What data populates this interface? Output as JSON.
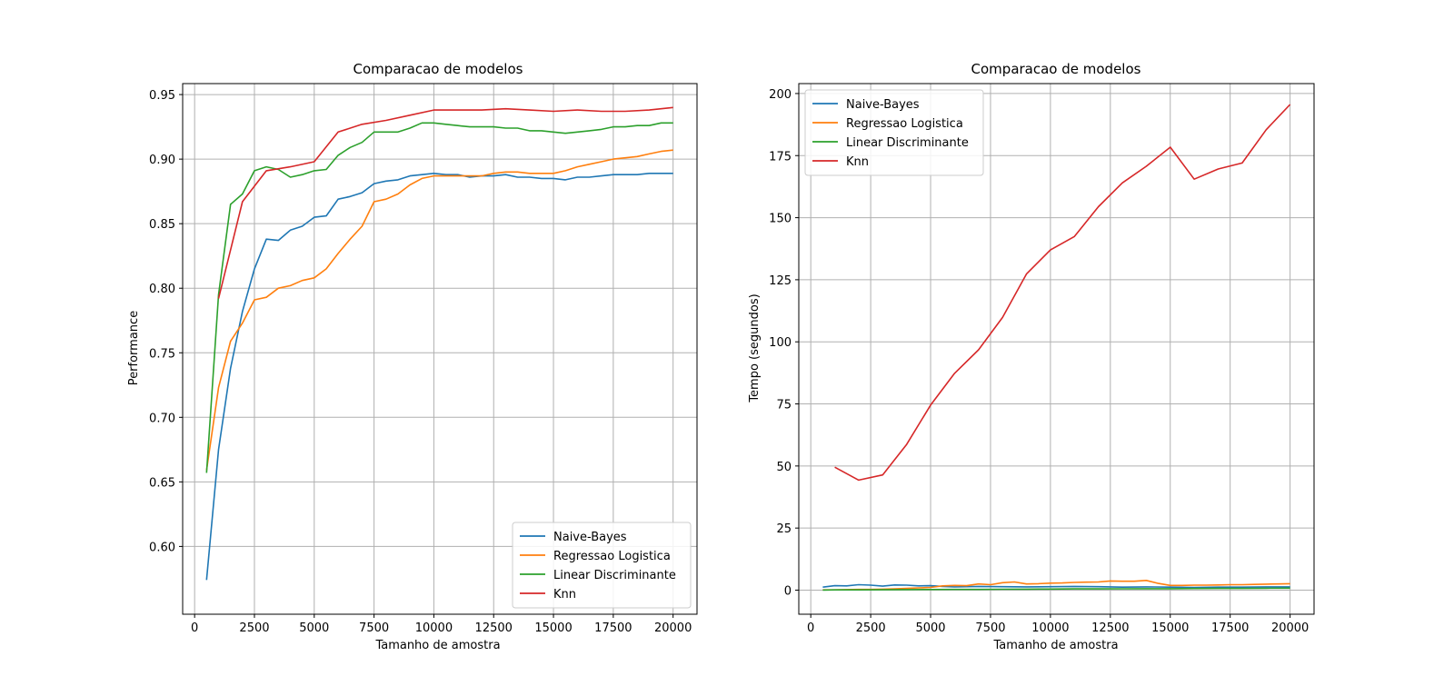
{
  "colors": {
    "naive_bayes": "#1f77b4",
    "regressao": "#ff7f0e",
    "linear": "#2ca02c",
    "knn": "#d62728",
    "grid": "#b0b0b0",
    "legend_border": "#cccccc"
  },
  "chart_data": [
    {
      "type": "line",
      "title": "Comparacao de modelos",
      "xlabel": "Tamanho de amostra",
      "ylabel": "Performance",
      "xlim": [
        -500,
        21000
      ],
      "ylim": [
        0.5475,
        0.9585
      ],
      "xticks": [
        0,
        2500,
        5000,
        7500,
        10000,
        12500,
        15000,
        17500,
        20000
      ],
      "xtick_labels": [
        "0",
        "2500",
        "5000",
        "7500",
        "10000",
        "12500",
        "15000",
        "17500",
        "20000"
      ],
      "yticks": [
        0.6,
        0.65,
        0.7,
        0.75,
        0.8,
        0.85,
        0.9,
        0.95
      ],
      "ytick_labels": [
        "0.60",
        "0.65",
        "0.70",
        "0.75",
        "0.80",
        "0.85",
        "0.90",
        "0.95"
      ],
      "grid": true,
      "legend_position": "lower-right",
      "series": [
        {
          "name": "Naive-Bayes",
          "color_key": "naive_bayes",
          "x": [
            500,
            1000,
            1500,
            2000,
            2500,
            3000,
            3500,
            4000,
            4500,
            5000,
            5500,
            6000,
            6500,
            7000,
            7500,
            8000,
            8500,
            9000,
            9500,
            10000,
            10500,
            11000,
            11500,
            12000,
            12500,
            13000,
            13500,
            14000,
            14500,
            15000,
            15500,
            16000,
            16500,
            17000,
            17500,
            18000,
            18500,
            19000,
            19500,
            20000
          ],
          "y": [
            0.574,
            0.675,
            0.738,
            0.782,
            0.815,
            0.838,
            0.837,
            0.845,
            0.848,
            0.855,
            0.856,
            0.869,
            0.871,
            0.874,
            0.881,
            0.883,
            0.884,
            0.887,
            0.888,
            0.889,
            0.888,
            0.888,
            0.886,
            0.887,
            0.887,
            0.888,
            0.886,
            0.886,
            0.885,
            0.885,
            0.884,
            0.886,
            0.886,
            0.887,
            0.888,
            0.888,
            0.888,
            0.889,
            0.889,
            0.889
          ]
        },
        {
          "name": "Regressao Logistica",
          "color_key": "regressao",
          "x": [
            500,
            1000,
            1500,
            2000,
            2500,
            3000,
            3500,
            4000,
            4500,
            5000,
            5500,
            6000,
            6500,
            7000,
            7500,
            8000,
            8500,
            9000,
            9500,
            10000,
            10500,
            11000,
            11500,
            12000,
            12500,
            13000,
            13500,
            14000,
            14500,
            15000,
            15500,
            16000,
            16500,
            17000,
            17500,
            18000,
            18500,
            19000,
            19500,
            20000
          ],
          "y": [
            0.659,
            0.723,
            0.759,
            0.773,
            0.791,
            0.793,
            0.8,
            0.802,
            0.806,
            0.808,
            0.815,
            0.827,
            0.838,
            0.848,
            0.867,
            0.869,
            0.873,
            0.88,
            0.885,
            0.887,
            0.887,
            0.887,
            0.887,
            0.887,
            0.889,
            0.89,
            0.89,
            0.889,
            0.889,
            0.889,
            0.891,
            0.894,
            0.896,
            0.898,
            0.9,
            0.901,
            0.902,
            0.904,
            0.906,
            0.907
          ]
        },
        {
          "name": "Linear Discriminante",
          "color_key": "linear",
          "x": [
            500,
            1000,
            1500,
            2000,
            2500,
            3000,
            3500,
            4000,
            4500,
            5000,
            5500,
            6000,
            6500,
            7000,
            7500,
            8000,
            8500,
            9000,
            9500,
            10000,
            10500,
            11000,
            11500,
            12000,
            12500,
            13000,
            13500,
            14000,
            14500,
            15000,
            15500,
            16000,
            16500,
            17000,
            17500,
            18000,
            18500,
            19000,
            19500,
            20000
          ],
          "y": [
            0.657,
            0.795,
            0.865,
            0.873,
            0.891,
            0.894,
            0.892,
            0.886,
            0.888,
            0.891,
            0.892,
            0.903,
            0.909,
            0.913,
            0.921,
            0.921,
            0.921,
            0.924,
            0.928,
            0.928,
            0.927,
            0.926,
            0.925,
            0.925,
            0.925,
            0.924,
            0.924,
            0.922,
            0.922,
            0.921,
            0.92,
            0.921,
            0.922,
            0.923,
            0.925,
            0.925,
            0.926,
            0.926,
            0.928,
            0.928
          ]
        },
        {
          "name": "Knn",
          "color_key": "knn",
          "x": [
            1000,
            2000,
            3000,
            4000,
            5000,
            6000,
            7000,
            8000,
            9000,
            10000,
            11000,
            12000,
            13000,
            14000,
            15000,
            16000,
            17000,
            18000,
            19000,
            20000
          ],
          "y": [
            0.792,
            0.867,
            0.891,
            0.894,
            0.898,
            0.921,
            0.927,
            0.93,
            0.934,
            0.938,
            0.938,
            0.938,
            0.939,
            0.938,
            0.937,
            0.938,
            0.937,
            0.937,
            0.938,
            0.94
          ]
        }
      ]
    },
    {
      "type": "line",
      "title": "Comparacao de modelos",
      "xlabel": "Tamanho de amostra",
      "ylabel": "Tempo (segundos)",
      "xlim": [
        -500,
        21000
      ],
      "ylim": [
        -9.7,
        204.0
      ],
      "xticks": [
        0,
        2500,
        5000,
        7500,
        10000,
        12500,
        15000,
        17500,
        20000
      ],
      "xtick_labels": [
        "0",
        "2500",
        "5000",
        "7500",
        "10000",
        "12500",
        "15000",
        "17500",
        "20000"
      ],
      "yticks": [
        0,
        25,
        50,
        75,
        100,
        125,
        150,
        175,
        200
      ],
      "ytick_labels": [
        "0",
        "25",
        "50",
        "75",
        "100",
        "125",
        "150",
        "175",
        "200"
      ],
      "grid": true,
      "legend_position": "upper-left",
      "series": [
        {
          "name": "Naive-Bayes",
          "color_key": "naive_bayes",
          "x": [
            500,
            1000,
            1500,
            2000,
            2500,
            3000,
            3500,
            4000,
            4500,
            5000,
            5500,
            6000,
            7000,
            8000,
            9000,
            10000,
            11000,
            12000,
            13000,
            14000,
            15000,
            16000,
            17000,
            18000,
            19000,
            20000
          ],
          "y": [
            1.2,
            1.8,
            1.7,
            2.2,
            2.0,
            1.6,
            2.1,
            2.0,
            1.7,
            1.8,
            1.5,
            1.3,
            1.5,
            1.4,
            1.3,
            1.4,
            1.5,
            1.4,
            1.2,
            1.3,
            1.2,
            1.1,
            1.2,
            1.2,
            1.3,
            1.3
          ]
        },
        {
          "name": "Regressao Logistica",
          "color_key": "regressao",
          "x": [
            500,
            1000,
            1500,
            2000,
            2500,
            3000,
            3500,
            4000,
            4500,
            5000,
            5500,
            6000,
            6500,
            7000,
            7500,
            8000,
            8500,
            9000,
            9500,
            10000,
            10500,
            11000,
            11500,
            12000,
            12500,
            13000,
            13500,
            14000,
            14500,
            15000,
            15500,
            16000,
            16500,
            17000,
            17500,
            18000,
            18500,
            19000,
            19500,
            20000
          ],
          "y": [
            0.1,
            0.1,
            0.2,
            0.3,
            0.3,
            0.4,
            0.5,
            0.7,
            0.9,
            1.1,
            1.7,
            1.9,
            1.8,
            2.5,
            2.2,
            3.0,
            3.3,
            2.5,
            2.6,
            2.8,
            2.9,
            3.1,
            3.2,
            3.3,
            3.7,
            3.6,
            3.6,
            3.9,
            2.7,
            1.9,
            1.9,
            2.0,
            2.0,
            2.1,
            2.2,
            2.2,
            2.3,
            2.4,
            2.5,
            2.6
          ]
        },
        {
          "name": "Linear Discriminante",
          "color_key": "linear",
          "x": [
            500,
            1000,
            2000,
            3000,
            4000,
            5000,
            6000,
            7000,
            8000,
            9000,
            10000,
            11000,
            12000,
            13000,
            14000,
            15000,
            16000,
            17000,
            18000,
            19000,
            20000
          ],
          "y": [
            0.05,
            0.1,
            0.1,
            0.15,
            0.2,
            0.25,
            0.3,
            0.3,
            0.35,
            0.4,
            0.45,
            0.5,
            0.5,
            0.55,
            0.6,
            0.6,
            0.65,
            0.7,
            0.7,
            0.75,
            0.8
          ]
        },
        {
          "name": "Knn",
          "color_key": "knn",
          "x": [
            1000,
            2000,
            3000,
            4000,
            5000,
            6000,
            7000,
            8000,
            9000,
            10000,
            11000,
            12000,
            13000,
            14000,
            15000,
            16000,
            17000,
            18000,
            19000,
            20000
          ],
          "y": [
            49.5,
            44.3,
            46.4,
            58.7,
            74.5,
            87.3,
            96.8,
            109.8,
            127.3,
            137.0,
            142.4,
            154.4,
            164.0,
            170.7,
            178.4,
            165.5,
            169.6,
            172.0,
            185.4,
            195.6
          ]
        }
      ]
    }
  ]
}
